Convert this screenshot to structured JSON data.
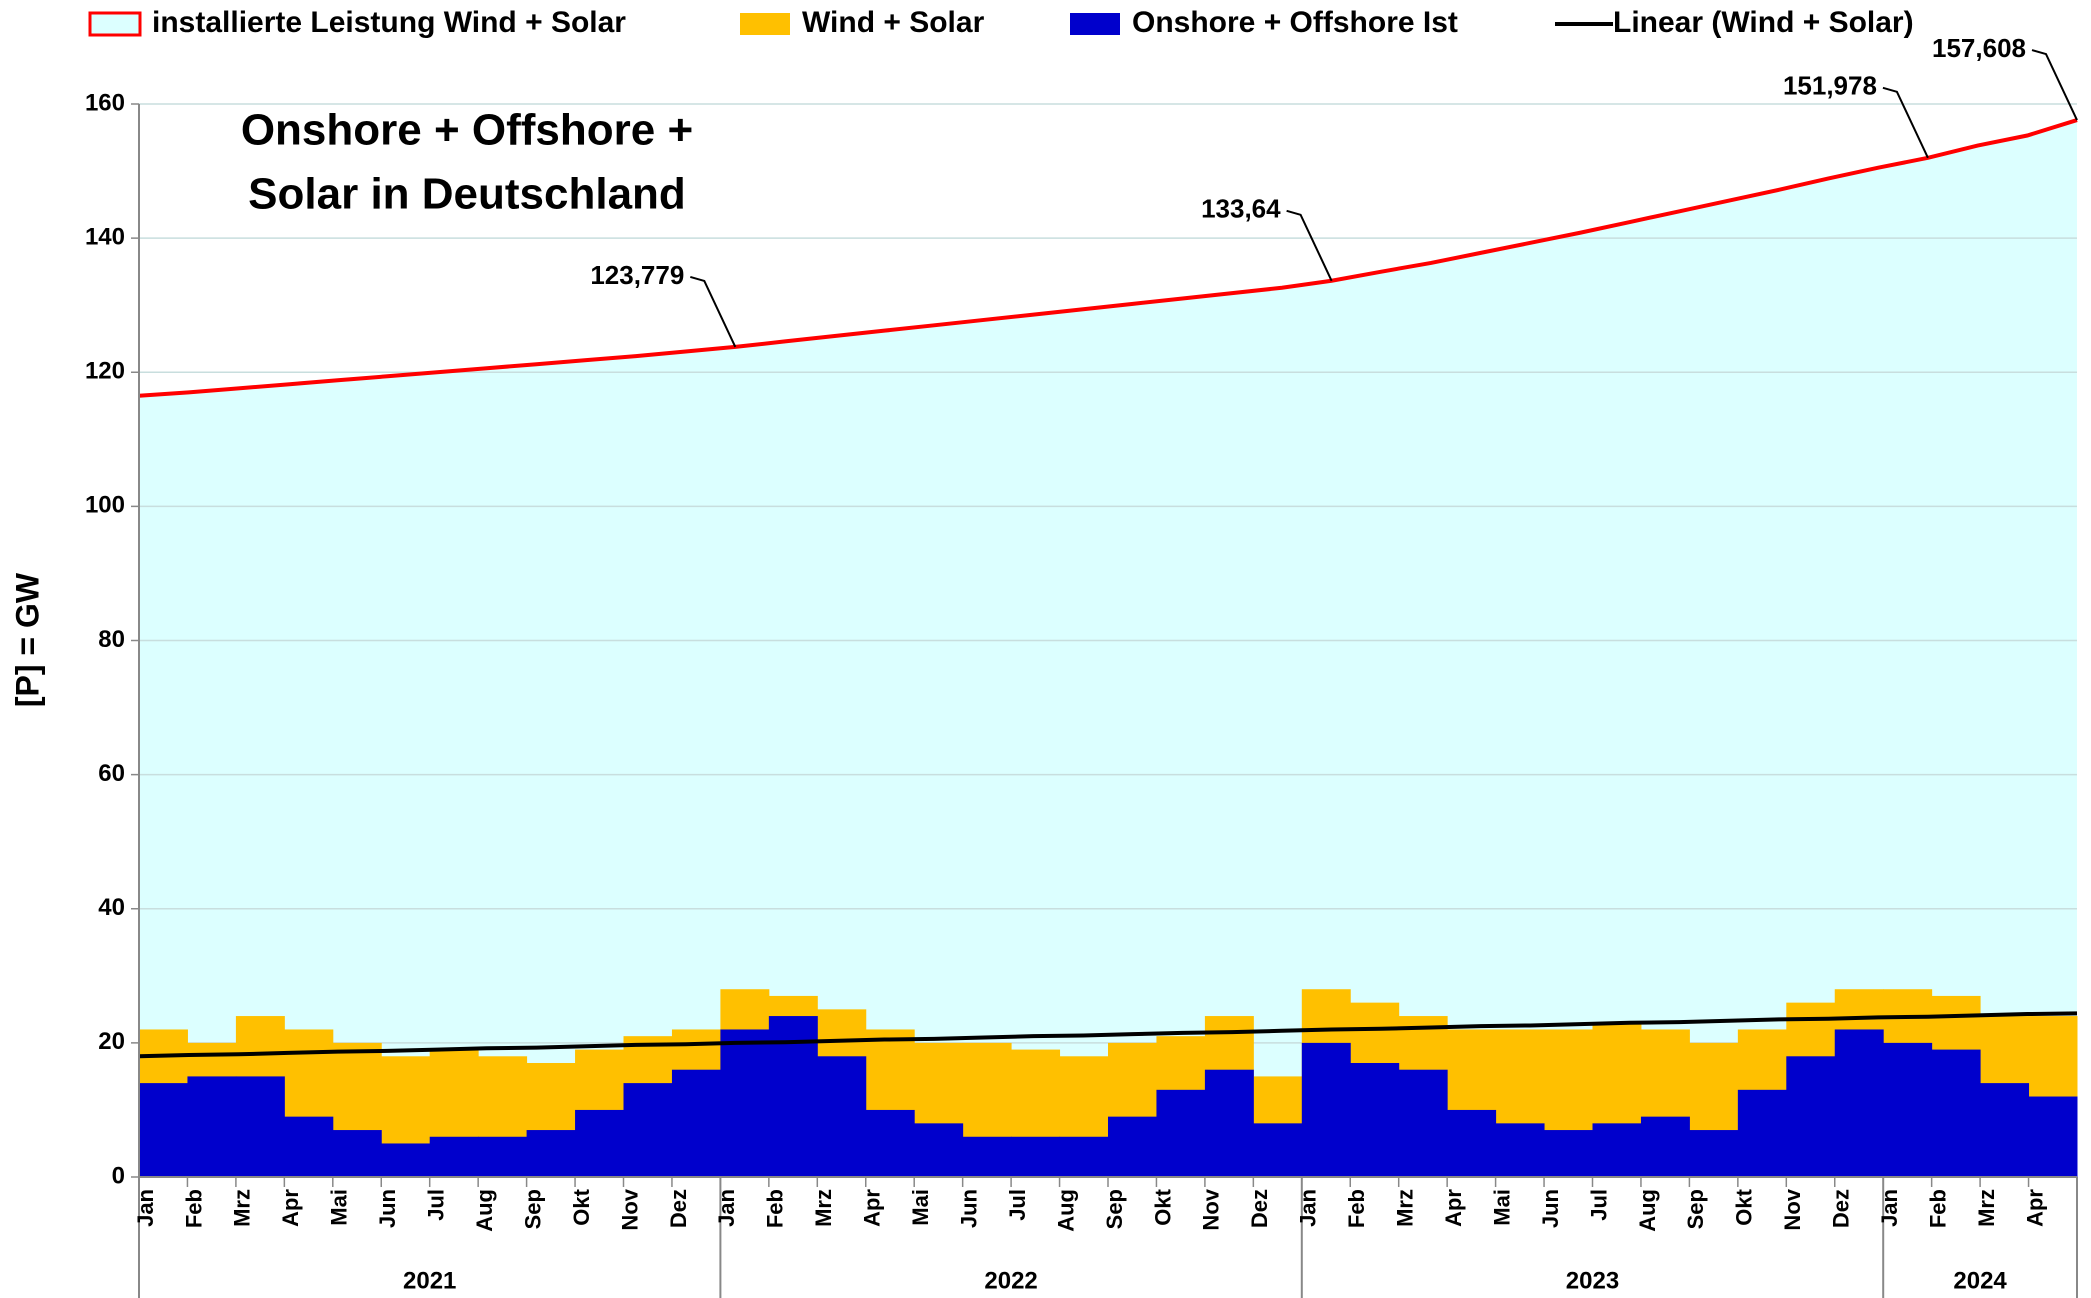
{
  "chart_data": {
    "type": "combo",
    "title": [
      "Onshore + Offshore +",
      "Solar in Deutschland"
    ],
    "y_label": "[P]  =  GW",
    "categories": [
      "Jan",
      "Feb",
      "Mrz",
      "Apr",
      "Mai",
      "Jun",
      "Jul",
      "Aug",
      "Sep",
      "Okt",
      "Nov",
      "Dez",
      "Jan",
      "Feb",
      "Mrz",
      "Apr",
      "Mai",
      "Jun",
      "Jul",
      "Aug",
      "Sep",
      "Okt",
      "Nov",
      "Dez",
      "Jan",
      "Feb",
      "Mrz",
      "Apr",
      "Mai",
      "Jun",
      "Jul",
      "Aug",
      "Sep",
      "Okt",
      "Nov",
      "Dez",
      "Jan",
      "Feb",
      "Mrz",
      "Apr"
    ],
    "years": [
      "2021",
      "2022",
      "2023",
      "2024"
    ],
    "ylim": [
      0,
      160
    ],
    "yticks": [
      0,
      20,
      40,
      60,
      80,
      100,
      120,
      140,
      160
    ],
    "grid": true,
    "series": [
      {
        "name": "installierte Leistung Wind + Solar",
        "kind": "area",
        "color": "#ff0000",
        "fill": "#dcffff",
        "values": [
          116.5,
          117,
          117.6,
          118.2,
          118.8,
          119.4,
          120,
          120.6,
          121.2,
          121.8,
          122.4,
          123.1,
          123.779,
          124.6,
          125.4,
          126.2,
          127,
          127.8,
          128.6,
          129.4,
          130.2,
          131,
          131.8,
          132.6,
          133.64,
          135,
          136.3,
          137.8,
          139.3,
          140.8,
          142.4,
          144,
          145.6,
          147.2,
          148.9,
          150.5,
          151.978,
          153.8,
          155.3,
          157.608
        ],
        "value_labels": [
          null,
          null,
          null,
          null,
          null,
          null,
          null,
          null,
          null,
          null,
          null,
          null,
          "123,779",
          null,
          null,
          null,
          null,
          null,
          null,
          null,
          null,
          null,
          null,
          null,
          "133,64",
          null,
          null,
          null,
          null,
          null,
          null,
          null,
          null,
          null,
          null,
          null,
          "151,978",
          null,
          null,
          "157,608"
        ]
      },
      {
        "name": "Wind + Solar",
        "kind": "bar",
        "color": "#ffc000",
        "values": [
          22,
          20,
          24,
          22,
          20,
          18,
          19,
          18,
          17,
          19,
          21,
          22,
          28,
          27,
          25,
          22,
          20,
          20,
          19,
          18,
          20,
          21,
          24,
          15,
          28,
          26,
          24,
          22,
          22,
          22,
          23,
          22,
          20,
          22,
          26,
          28,
          28,
          27,
          24,
          24
        ]
      },
      {
        "name": "Onshore + Offshore Ist",
        "kind": "bar",
        "color": "#0000cc",
        "values": [
          14,
          15,
          15,
          9,
          7,
          5,
          6,
          6,
          7,
          10,
          14,
          16,
          22,
          24,
          18,
          10,
          8,
          6,
          6,
          6,
          9,
          13,
          16,
          8,
          20,
          17,
          16,
          10,
          8,
          7,
          8,
          9,
          7,
          13,
          18,
          22,
          20,
          19,
          14,
          12
        ]
      },
      {
        "name": "Linear (Wind + Solar)",
        "kind": "line",
        "color": "#000000",
        "values": [
          18.0,
          18.2,
          18.3,
          18.5,
          18.7,
          18.8,
          19.0,
          19.2,
          19.3,
          19.5,
          19.7,
          19.8,
          20.0,
          20.1,
          20.3,
          20.5,
          20.6,
          20.8,
          21.0,
          21.1,
          21.3,
          21.5,
          21.6,
          21.8,
          22.0,
          22.1,
          22.3,
          22.5,
          22.6,
          22.8,
          23.0,
          23.1,
          23.3,
          23.5,
          23.6,
          23.8,
          23.9,
          24.1,
          24.3,
          24.4
        ]
      }
    ]
  }
}
